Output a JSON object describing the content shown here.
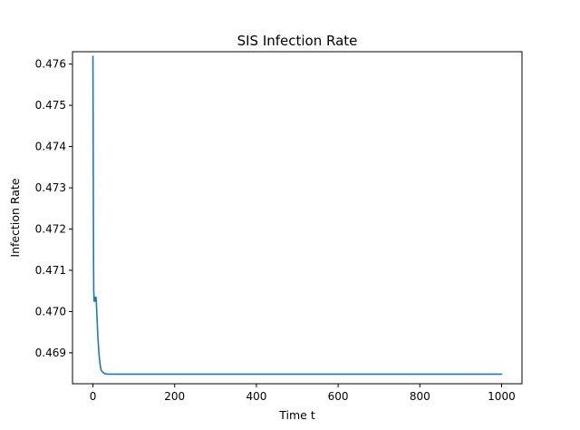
{
  "chart_data": {
    "type": "line",
    "title": "SIS Infection Rate",
    "xlabel": "Time t",
    "ylabel": "Infection Rate",
    "xlim": [
      -50,
      1050
    ],
    "ylim": [
      0.46825,
      0.4763
    ],
    "xticks": [
      {
        "value": 0,
        "label": "0"
      },
      {
        "value": 200,
        "label": "200"
      },
      {
        "value": 400,
        "label": "400"
      },
      {
        "value": 600,
        "label": "600"
      },
      {
        "value": 800,
        "label": "800"
      },
      {
        "value": 1000,
        "label": "1000"
      }
    ],
    "yticks": [
      {
        "value": 0.469,
        "label": "0.469"
      },
      {
        "value": 0.47,
        "label": "0.470"
      },
      {
        "value": 0.471,
        "label": "0.471"
      },
      {
        "value": 0.472,
        "label": "0.472"
      },
      {
        "value": 0.473,
        "label": "0.473"
      },
      {
        "value": 0.474,
        "label": "0.474"
      },
      {
        "value": 0.475,
        "label": "0.475"
      },
      {
        "value": 0.476,
        "label": "0.476"
      }
    ],
    "grid": false,
    "legend": "none",
    "series": [
      {
        "color": "#1f77b4",
        "x": [
          0,
          0.5,
          1,
          1.5,
          2,
          3,
          4,
          5,
          6,
          7,
          8,
          10,
          12,
          15,
          18,
          20,
          25,
          30,
          35,
          40,
          50,
          60,
          80,
          100,
          150,
          200,
          300,
          400,
          500,
          600,
          700,
          800,
          900,
          1000
        ],
        "y": [
          0.47619,
          0.4745,
          0.4727,
          0.4712,
          0.4705,
          0.47025,
          0.47035,
          0.4703,
          0.47025,
          0.47035,
          0.4703,
          0.46985,
          0.4694,
          0.46895,
          0.46868,
          0.46858,
          0.46852,
          0.46849,
          0.468485,
          0.468483,
          0.468482,
          0.468482,
          0.468482,
          0.468482,
          0.468482,
          0.468482,
          0.468482,
          0.468482,
          0.468482,
          0.468482,
          0.468482,
          0.468482,
          0.468482,
          0.468482
        ]
      }
    ]
  }
}
